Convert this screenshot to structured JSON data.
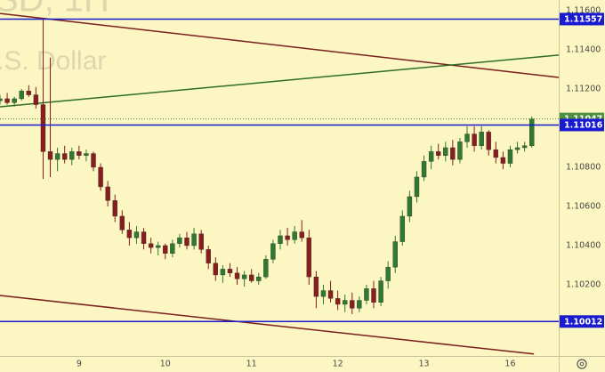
{
  "chart_data": {
    "type": "candlestick",
    "watermark": {
      "symbol": "SD, 1H",
      "name": ".S. Dollar"
    },
    "up_color": "#2e7a2e",
    "down_color": "#8a1c1c",
    "x": [
      0,
      1,
      2,
      3,
      4,
      5,
      6,
      7,
      8,
      9,
      10,
      11,
      12,
      13,
      14,
      15,
      16,
      17,
      18,
      19,
      20,
      21,
      22,
      23,
      24,
      25,
      26,
      27,
      28,
      29,
      30,
      31,
      32,
      33,
      34,
      35,
      36,
      37,
      38,
      39,
      40,
      41,
      42,
      43,
      44,
      45,
      46,
      47,
      48,
      49,
      50,
      51,
      52,
      53,
      54,
      55,
      56,
      57,
      58,
      59,
      60,
      61,
      62,
      63,
      64,
      65,
      66,
      67,
      68,
      69,
      70,
      71,
      72,
      73,
      74
    ],
    "open": [
      1.1114,
      1.1115,
      1.1113,
      1.1115,
      1.1119,
      1.1117,
      1.1112,
      1.1088,
      1.1084,
      1.1087,
      1.1084,
      1.1088,
      1.1086,
      1.1087,
      1.108,
      1.107,
      1.1063,
      1.1055,
      1.1048,
      1.1044,
      1.1047,
      1.1041,
      1.1039,
      1.104,
      1.1036,
      1.1041,
      1.1044,
      1.104,
      1.1046,
      1.1038,
      1.1031,
      1.1025,
      1.1028,
      1.1026,
      1.1023,
      1.1025,
      1.1022,
      1.1024,
      1.1033,
      1.1041,
      1.1045,
      1.1043,
      1.1047,
      1.1044,
      1.1024,
      1.1014,
      1.1017,
      1.1013,
      1.101,
      1.1012,
      1.1008,
      1.1012,
      1.1018,
      1.1011,
      1.1022,
      1.1029,
      1.1042,
      1.1055,
      1.1065,
      1.1075,
      1.1083,
      1.1088,
      1.1086,
      1.109,
      1.1084,
      1.1093,
      1.1097,
      1.1091,
      1.1098,
      1.1089,
      1.1085,
      1.1082,
      1.1089,
      1.109,
      1.1091
    ],
    "high": [
      1.1117,
      1.1118,
      1.1116,
      1.112,
      1.1122,
      1.1121,
      1.11557,
      1.1136,
      1.109,
      1.1091,
      1.109,
      1.1091,
      1.1089,
      1.1088,
      1.1082,
      1.1073,
      1.1066,
      1.1058,
      1.1052,
      1.105,
      1.1049,
      1.1044,
      1.1042,
      1.1041,
      1.1043,
      1.1046,
      1.1047,
      1.1049,
      1.1048,
      1.104,
      1.1034,
      1.103,
      1.1031,
      1.1029,
      1.1027,
      1.1028,
      1.1026,
      1.1035,
      1.1043,
      1.1048,
      1.1049,
      1.105,
      1.1053,
      1.1048,
      1.1027,
      1.102,
      1.1022,
      1.1017,
      1.1015,
      1.1016,
      1.1014,
      1.102,
      1.1022,
      1.1024,
      1.1032,
      1.1045,
      1.1058,
      1.1068,
      1.1078,
      1.1086,
      1.1091,
      1.1092,
      1.1093,
      1.1094,
      1.1095,
      1.1101,
      1.1101,
      1.1101,
      1.1099,
      1.1093,
      1.1088,
      1.1091,
      1.1093,
      1.1093,
      1.1106
    ],
    "low": [
      1.1112,
      1.1112,
      1.1111,
      1.1114,
      1.1116,
      1.111,
      1.1074,
      1.1075,
      1.1078,
      1.1082,
      1.1081,
      1.1084,
      1.1083,
      1.1078,
      1.1068,
      1.106,
      1.1052,
      1.1046,
      1.104,
      1.1041,
      1.1038,
      1.1036,
      1.1035,
      1.1033,
      1.1034,
      1.1039,
      1.1038,
      1.1038,
      1.1036,
      1.1028,
      1.1022,
      1.1021,
      1.1024,
      1.102,
      1.1019,
      1.1021,
      1.102,
      1.1023,
      1.1031,
      1.1038,
      1.104,
      1.1041,
      1.1042,
      1.102,
      1.1008,
      1.101,
      1.1011,
      1.1007,
      1.1006,
      1.1005,
      1.1006,
      1.101,
      1.1008,
      1.1009,
      1.1018,
      1.1026,
      1.104,
      1.1052,
      1.1062,
      1.1073,
      1.1079,
      1.1084,
      1.1083,
      1.1081,
      1.1082,
      1.109,
      1.1088,
      1.1089,
      1.1086,
      1.1082,
      1.1079,
      1.108,
      1.1087,
      1.1088,
      1.109
    ],
    "close": [
      1.1115,
      1.1113,
      1.1115,
      1.1119,
      1.1117,
      1.1112,
      1.1088,
      1.1084,
      1.1087,
      1.1084,
      1.1088,
      1.1086,
      1.1087,
      1.108,
      1.107,
      1.1063,
      1.1055,
      1.1048,
      1.1044,
      1.1047,
      1.1041,
      1.1039,
      1.104,
      1.1036,
      1.1041,
      1.1044,
      1.104,
      1.1046,
      1.1038,
      1.1031,
      1.1025,
      1.1028,
      1.1026,
      1.1023,
      1.1025,
      1.1022,
      1.1024,
      1.1033,
      1.1041,
      1.1045,
      1.1043,
      1.1047,
      1.1044,
      1.1024,
      1.1014,
      1.1017,
      1.1013,
      1.101,
      1.1012,
      1.1008,
      1.1012,
      1.1018,
      1.1011,
      1.1022,
      1.1029,
      1.1042,
      1.1055,
      1.1065,
      1.1075,
      1.1083,
      1.1088,
      1.1086,
      1.109,
      1.1084,
      1.1093,
      1.1097,
      1.1091,
      1.1098,
      1.1089,
      1.1085,
      1.1082,
      1.1089,
      1.109,
      1.1091,
      1.11047
    ],
    "xlim": [
      0,
      77.75
    ],
    "xticks": [
      {
        "value": 11,
        "label": "9"
      },
      {
        "value": 23,
        "label": "10"
      },
      {
        "value": 35,
        "label": "11"
      },
      {
        "value": 47,
        "label": "12"
      },
      {
        "value": 59,
        "label": "13"
      },
      {
        "value": 71,
        "label": "16"
      }
    ],
    "ylim": [
      1.09836,
      1.116545
    ],
    "yticks": [
      {
        "value": 1.116,
        "label": "1.11600"
      },
      {
        "value": 1.114,
        "label": "1.11400"
      },
      {
        "value": 1.112,
        "label": "1.11200"
      },
      {
        "value": 1.108,
        "label": "1.10800"
      },
      {
        "value": 1.106,
        "label": "1.10600"
      },
      {
        "value": 1.104,
        "label": "1.10400"
      },
      {
        "value": 1.102,
        "label": "1.10200"
      }
    ],
    "grid": false,
    "trend_lines": [
      {
        "color": "#7b1f1f",
        "x": [
          0,
          77.75
        ],
        "y": [
          1.11586,
          1.11259
        ]
      },
      {
        "color": "#2f6e24",
        "x": [
          0,
          77.75
        ],
        "y": [
          1.11109,
          1.11373
        ]
      },
      {
        "color": "#7b1f1f",
        "x": [
          0,
          74.3
        ],
        "y": [
          1.10145,
          1.09846
        ]
      }
    ],
    "levels": [
      {
        "value": 1.11557,
        "color": "#1a1ad0",
        "style": "solid"
      },
      {
        "value": 1.11047,
        "color": "#4c8f3c",
        "style": "dotted"
      },
      {
        "value": 1.11016,
        "color": "#1a1ad0",
        "style": "solid"
      },
      {
        "value": 1.10012,
        "color": "#1a1ad0",
        "style": "solid"
      }
    ]
  }
}
